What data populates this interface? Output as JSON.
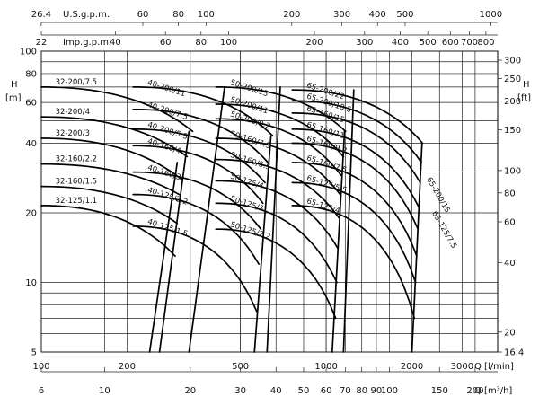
{
  "chart_data": {
    "type": "line",
    "title": "",
    "log_axes": true,
    "grid": true,
    "axes": {
      "q_lmin": {
        "label": "Q [l/min]",
        "range": [
          100,
          4000
        ],
        "ticks": [
          {
            "v": 100,
            "t": "100"
          },
          {
            "v": 200,
            "t": "200"
          },
          {
            "v": 500,
            "t": "500"
          },
          {
            "v": 1000,
            "t": "1000"
          },
          {
            "v": 2000,
            "t": "2000"
          },
          {
            "v": 3000,
            "t": "3000"
          }
        ]
      },
      "q_m3h": {
        "label": "Q [m³/h]",
        "ticks": [
          {
            "v": 6,
            "t": "6"
          },
          {
            "v": 10,
            "t": "10"
          },
          {
            "v": 20,
            "t": "20"
          },
          {
            "v": 30,
            "t": "30"
          },
          {
            "v": 40,
            "t": "40"
          },
          {
            "v": 50,
            "t": "50"
          },
          {
            "v": 60,
            "t": "60"
          },
          {
            "v": 70,
            "t": "70"
          },
          {
            "v": 80,
            "t": "80"
          },
          {
            "v": 90,
            "t": "90"
          },
          {
            "v": 100,
            "t": "100"
          },
          {
            "v": 150,
            "t": "150"
          },
          {
            "v": 200,
            "t": "200"
          }
        ]
      },
      "q_usgpm": {
        "label": "U.S.g.p.m.",
        "ticks": [
          {
            "v": 26.4,
            "t": "26.4"
          },
          {
            "v": 60,
            "t": "60"
          },
          {
            "v": 80,
            "t": "80"
          },
          {
            "v": 100,
            "t": "100"
          },
          {
            "v": 200,
            "t": "200"
          },
          {
            "v": 300,
            "t": "300"
          },
          {
            "v": 400,
            "t": "400"
          },
          {
            "v": 500,
            "t": "500"
          },
          {
            "v": 1000,
            "t": "1000"
          }
        ]
      },
      "q_impgpm": {
        "label": "Imp.g.p.m.",
        "ticks": [
          {
            "v": 22,
            "t": "22"
          },
          {
            "v": 40,
            "t": "40"
          },
          {
            "v": 60,
            "t": "60"
          },
          {
            "v": 80,
            "t": "80"
          },
          {
            "v": 100,
            "t": "100"
          },
          {
            "v": 200,
            "t": "200"
          },
          {
            "v": 300,
            "t": "300"
          },
          {
            "v": 400,
            "t": "400"
          },
          {
            "v": 500,
            "t": "500"
          },
          {
            "v": 600,
            "t": "600"
          },
          {
            "v": 700,
            "t": "700"
          },
          {
            "v": 800,
            "t": "800"
          }
        ]
      },
      "h_m": {
        "label": "H",
        "unit": "[m]",
        "range": [
          5,
          100
        ],
        "ticks": [
          {
            "v": 5,
            "t": "5"
          },
          {
            "v": 10,
            "t": "10"
          },
          {
            "v": 20,
            "t": "20"
          },
          {
            "v": 40,
            "t": "40"
          },
          {
            "v": 60,
            "t": "60"
          },
          {
            "v": 80,
            "t": "80"
          },
          {
            "v": 100,
            "t": "100"
          }
        ]
      },
      "h_ft": {
        "label": "H",
        "unit": "[ft]",
        "ticks": [
          {
            "v": 16.4,
            "t": "16.4"
          },
          {
            "v": 20,
            "t": "20"
          },
          {
            "v": 40,
            "t": "40"
          },
          {
            "v": 60,
            "t": "60"
          },
          {
            "v": 80,
            "t": "80"
          },
          {
            "v": 100,
            "t": "100"
          },
          {
            "v": 150,
            "t": "150"
          },
          {
            "v": 200,
            "t": "200"
          },
          {
            "v": 250,
            "t": "250"
          },
          {
            "v": 300,
            "t": "300"
          }
        ]
      }
    },
    "groups": [
      {
        "name": "32",
        "curves": [
          {
            "label": "32-200/7.5",
            "h0": 70,
            "qend": 340,
            "hend": 45
          },
          {
            "label": "32-200/4",
            "h0": 52,
            "qend": 325,
            "hend": 35
          },
          {
            "label": "32-200/3",
            "h0": 42,
            "qend": 310,
            "hend": 28
          },
          {
            "label": "32-160/2.2",
            "h0": 32.5,
            "qend": 305,
            "hend": 24
          },
          {
            "label": "32-160/1.5",
            "h0": 26,
            "qend": 300,
            "hend": 18
          },
          {
            "label": "32-125/1.1",
            "h0": 21.5,
            "qend": 295,
            "hend": 13
          }
        ],
        "envelope": [
          [
            260,
            5
          ],
          [
            330,
            45
          ]
        ],
        "envelope2": [
          [
            240,
            5
          ],
          [
            300,
            33
          ]
        ]
      },
      {
        "name": "40",
        "curves": [
          {
            "label": "40-200/11",
            "h0": 70,
            "qend": 650,
            "hend": 43
          },
          {
            "label": "40-200/7.5",
            "h0": 56,
            "qend": 625,
            "hend": 33
          },
          {
            "label": "40-200/5.5",
            "h0": 46,
            "qend": 610,
            "hend": 27
          },
          {
            "label": "40-160/4",
            "h0": 39,
            "qend": 600,
            "hend": 22
          },
          {
            "label": "40-160/3",
            "h0": 30,
            "qend": 590,
            "hend": 17
          },
          {
            "label": "40-125/2.2",
            "h0": 24,
            "qend": 580,
            "hend": 12
          },
          {
            "label": "40-125/1.5",
            "h0": 17.5,
            "qend": 570,
            "hend": 7.5
          }
        ],
        "envelope": [
          [
            560,
            5
          ],
          [
            640,
            43
          ]
        ],
        "envelope2": [
          [
            330,
            5
          ],
          [
            440,
            70
          ]
        ]
      },
      {
        "name": "50",
        "curves": [
          {
            "label": "50-200/15",
            "h0": 70,
            "qend": 1170,
            "hend": 45
          },
          {
            "label": "50-200/11",
            "h0": 59,
            "qend": 1150,
            "hend": 35
          },
          {
            "label": "50-200/9.2",
            "h0": 51,
            "qend": 1130,
            "hend": 29
          },
          {
            "label": "50-160/7.5",
            "h0": 42,
            "qend": 1120,
            "hend": 24
          },
          {
            "label": "50-160/5.5",
            "h0": 34,
            "qend": 1110,
            "hend": 19
          },
          {
            "label": "50-125/4",
            "h0": 27.5,
            "qend": 1100,
            "hend": 14
          },
          {
            "label": "50-125/3",
            "h0": 22,
            "qend": 1090,
            "hend": 10
          },
          {
            "label": "50-125/2.2",
            "h0": 17,
            "qend": 1080,
            "hend": 7
          }
        ],
        "envelope": [
          [
            1050,
            5
          ],
          [
            1160,
            45
          ]
        ],
        "envelope2": [
          [
            620,
            5
          ],
          [
            690,
            70
          ]
        ]
      },
      {
        "name": "65",
        "curves": [
          {
            "label": "65-200/22",
            "h0": 68,
            "qend": 2180,
            "hend": 40
          },
          {
            "label": "65-200/18.5",
            "h0": 61,
            "qend": 2160,
            "hend": 33
          },
          {
            "label": "65-160/15",
            "h0": 54,
            "qend": 2140,
            "hend": 27
          },
          {
            "label": "65-160/11",
            "h0": 46,
            "qend": 2120,
            "hend": 21
          },
          {
            "label": "65-160/9.2",
            "h0": 40,
            "qend": 2100,
            "hend": 17
          },
          {
            "label": "65-160/7.5",
            "h0": 33,
            "qend": 2080,
            "hend": 13
          },
          {
            "label": "65-125/5.5",
            "h0": 27,
            "qend": 2060,
            "hend": 10
          },
          {
            "label": "65-125/4",
            "h0": 21.5,
            "qend": 2040,
            "hend": 7
          }
        ],
        "envelope": [
          [
            2000,
            5
          ],
          [
            2170,
            40
          ]
        ],
        "envelope2": [
          [
            1150,
            5
          ],
          [
            1250,
            68
          ]
        ]
      }
    ],
    "side_labels": [
      {
        "label": "65-200/15",
        "group": "65"
      },
      {
        "label": "65-125/7.5",
        "group": "65"
      }
    ]
  }
}
